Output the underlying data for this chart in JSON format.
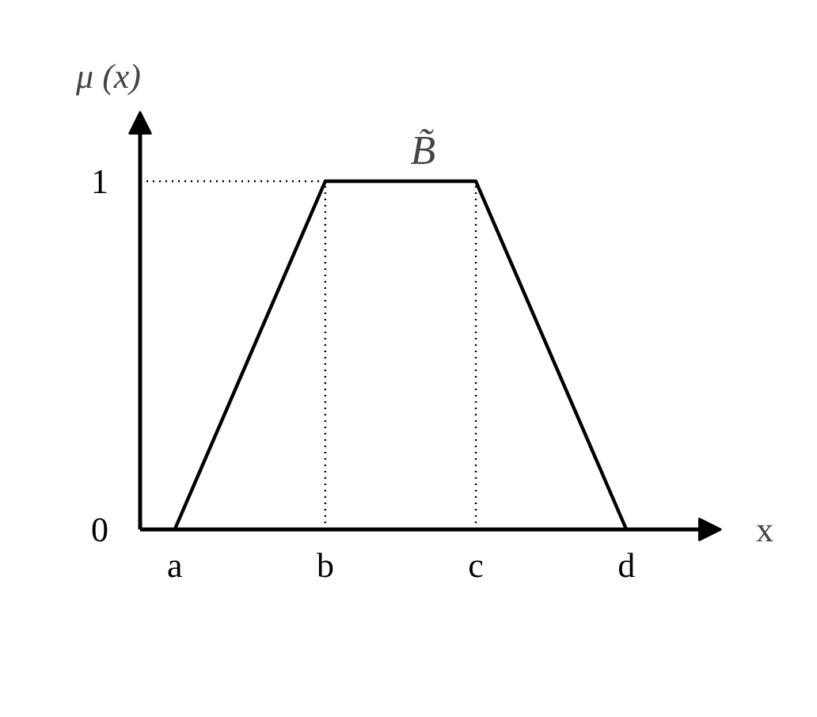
{
  "chart_data": {
    "type": "line",
    "ylabel": "μ (x)",
    "xlabel": "x",
    "categories": [
      "a",
      "b",
      "c",
      "d"
    ],
    "series": [
      {
        "color": "#000000",
        "values": [
          0,
          1,
          1,
          0
        ]
      }
    ],
    "ylim": [
      0,
      1.2
    ],
    "yticks": [
      0,
      1
    ],
    "ref_lines": [
      {
        "axis": "y",
        "value": 1,
        "line_style": "dotted",
        "color": "#000000"
      },
      {
        "axis": "x",
        "value": "b",
        "line_style": "dotted",
        "color": "#000000"
      },
      {
        "axis": "x",
        "value": "c",
        "line_style": "dotted",
        "color": "#000000"
      }
    ],
    "annotations": [
      "B̃"
    ],
    "grid": false,
    "marker": "none",
    "line_style": "solid"
  }
}
